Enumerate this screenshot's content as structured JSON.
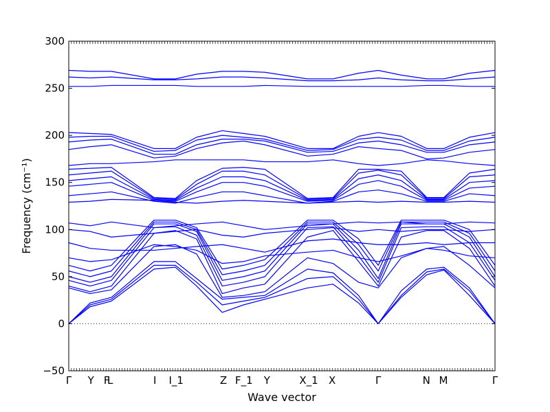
{
  "chart_data": {
    "type": "line",
    "title": "",
    "xlabel": "Wave vector",
    "ylabel": "Frequency (cm⁻¹)",
    "ylim": [
      -50,
      300
    ],
    "yticks": [
      -50,
      0,
      50,
      100,
      150,
      200,
      250,
      300
    ],
    "legend": "none",
    "grid": false,
    "line_color": "#0000ff",
    "zero_line_style": "dotted",
    "x_range": [
      0,
      1
    ],
    "kpoints": [
      {
        "label": "Γ",
        "x": 0.0
      },
      {
        "label": "Y",
        "x": 0.052
      },
      {
        "label": "F",
        "x": 0.089
      },
      {
        "label": "L",
        "x": 0.097
      },
      {
        "label": "I",
        "x": 0.202
      },
      {
        "label": "I_1",
        "x": 0.252
      },
      {
        "label": "Z",
        "x": 0.363
      },
      {
        "label": "F_1",
        "x": 0.411
      },
      {
        "label": "Y",
        "x": 0.465
      },
      {
        "label": "X_1",
        "x": 0.563
      },
      {
        "label": "X",
        "x": 0.618
      },
      {
        "label": "Γ",
        "x": 0.726
      },
      {
        "label": "N",
        "x": 0.839
      },
      {
        "label": "M",
        "x": 0.879
      },
      {
        "label": "Γ",
        "x": 1.0
      }
    ],
    "series": [
      {
        "x": [
          0,
          0.05,
          0.1,
          0.2,
          0.25,
          0.3,
          0.36,
          0.41,
          0.46,
          0.56,
          0.62,
          0.68,
          0.726,
          0.78,
          0.84,
          0.88,
          0.94,
          1.0
        ],
        "values": [
          0,
          18,
          24,
          58,
          60,
          40,
          12,
          20,
          26,
          38,
          42,
          22,
          0,
          28,
          52,
          57,
          30,
          0
        ]
      },
      {
        "x": [
          0,
          0.05,
          0.1,
          0.2,
          0.25,
          0.3,
          0.36,
          0.41,
          0.46,
          0.56,
          0.62,
          0.68,
          0.726,
          0.78,
          0.84,
          0.88,
          0.94,
          1.0
        ],
        "values": [
          0,
          20,
          26,
          62,
          62,
          44,
          20,
          24,
          28,
          48,
          50,
          26,
          0,
          30,
          55,
          58,
          35,
          0
        ]
      },
      {
        "x": [
          0,
          0.05,
          0.1,
          0.2,
          0.25,
          0.3,
          0.36,
          0.41,
          0.46,
          0.56,
          0.62,
          0.68,
          0.726,
          0.78,
          0.84,
          0.88,
          0.94,
          1.0
        ],
        "values": [
          0,
          22,
          28,
          66,
          66,
          48,
          26,
          28,
          30,
          58,
          54,
          30,
          0,
          35,
          58,
          60,
          38,
          0
        ]
      },
      {
        "x": [
          0,
          0.05,
          0.1,
          0.2,
          0.25,
          0.3,
          0.36,
          0.41,
          0.46,
          0.56,
          0.62,
          0.68,
          0.726,
          0.78,
          0.84,
          0.88,
          0.94,
          1.0
        ],
        "values": [
          38,
          32,
          36,
          82,
          84,
          74,
          28,
          30,
          34,
          70,
          64,
          44,
          38,
          70,
          80,
          82,
          62,
          38
        ]
      },
      {
        "x": [
          0,
          0.05,
          0.1,
          0.2,
          0.25,
          0.3,
          0.36,
          0.41,
          0.46,
          0.56,
          0.62,
          0.68,
          0.726,
          0.78,
          0.84,
          0.88,
          0.94,
          1.0
        ],
        "values": [
          40,
          34,
          40,
          96,
          99,
          90,
          32,
          38,
          42,
          92,
          99,
          66,
          40,
          92,
          99,
          99,
          80,
          40
        ]
      },
      {
        "x": [
          0,
          0.05,
          0.1,
          0.2,
          0.25,
          0.3,
          0.36,
          0.41,
          0.46,
          0.56,
          0.62,
          0.68,
          0.726,
          0.78,
          0.84,
          0.88,
          0.94,
          1.0
        ],
        "values": [
          46,
          40,
          46,
          102,
          103,
          94,
          40,
          44,
          50,
          102,
          103,
          72,
          44,
          102,
          103,
          103,
          86,
          46
        ]
      },
      {
        "x": [
          0,
          0.05,
          0.1,
          0.2,
          0.25,
          0.3,
          0.36,
          0.41,
          0.46,
          0.56,
          0.62,
          0.68,
          0.726,
          0.78,
          0.84,
          0.88,
          0.94,
          1.0
        ],
        "values": [
          50,
          44,
          50,
          106,
          106,
          98,
          46,
          50,
          56,
          106,
          106,
          78,
          48,
          106,
          106,
          106,
          92,
          50
        ]
      },
      {
        "x": [
          0,
          0.05,
          0.1,
          0.2,
          0.25,
          0.3,
          0.36,
          0.41,
          0.46,
          0.56,
          0.62,
          0.68,
          0.726,
          0.78,
          0.84,
          0.88,
          0.94,
          1.0
        ],
        "values": [
          56,
          50,
          56,
          108,
          108,
          100,
          52,
          56,
          62,
          108,
          108,
          84,
          56,
          108,
          108,
          108,
          96,
          56
        ]
      },
      {
        "x": [
          0,
          0.05,
          0.1,
          0.2,
          0.25,
          0.3,
          0.36,
          0.41,
          0.46,
          0.56,
          0.62,
          0.68,
          0.726,
          0.78,
          0.84,
          0.88,
          0.94,
          1.0
        ],
        "values": [
          62,
          56,
          62,
          110,
          110,
          102,
          58,
          62,
          68,
          110,
          110,
          90,
          62,
          110,
          110,
          110,
          100,
          62
        ]
      },
      {
        "x": [
          0,
          0.05,
          0.1,
          0.2,
          0.25,
          0.3,
          0.36,
          0.41,
          0.46,
          0.56,
          0.62,
          0.68,
          0.726,
          0.78,
          0.84,
          0.88,
          0.94,
          1.0
        ],
        "values": [
          70,
          66,
          68,
          84,
          82,
          78,
          64,
          66,
          72,
          76,
          78,
          70,
          66,
          72,
          80,
          78,
          72,
          70
        ]
      },
      {
        "x": [
          0,
          0.05,
          0.1,
          0.2,
          0.25,
          0.3,
          0.36,
          0.41,
          0.46,
          0.56,
          0.62,
          0.68,
          0.726,
          0.78,
          0.84,
          0.88,
          0.94,
          1.0
        ],
        "values": [
          86,
          80,
          78,
          78,
          80,
          82,
          84,
          80,
          76,
          88,
          90,
          86,
          84,
          84,
          86,
          84,
          86,
          86
        ]
      },
      {
        "x": [
          0,
          0.05,
          0.1,
          0.2,
          0.25,
          0.3,
          0.36,
          0.41,
          0.46,
          0.56,
          0.62,
          0.68,
          0.726,
          0.78,
          0.84,
          0.88,
          0.94,
          1.0
        ],
        "values": [
          100,
          98,
          92,
          96,
          98,
          100,
          94,
          92,
          96,
          100,
          102,
          98,
          100,
          98,
          100,
          100,
          98,
          100
        ]
      },
      {
        "x": [
          0,
          0.05,
          0.1,
          0.2,
          0.25,
          0.3,
          0.36,
          0.41,
          0.46,
          0.56,
          0.62,
          0.68,
          0.726,
          0.78,
          0.84,
          0.88,
          0.94,
          1.0
        ],
        "values": [
          107,
          104,
          108,
          102,
          104,
          106,
          108,
          104,
          100,
          104,
          106,
          108,
          107,
          108,
          106,
          106,
          108,
          107
        ]
      },
      {
        "x": [
          0,
          0.05,
          0.1,
          0.2,
          0.25,
          0.3,
          0.36,
          0.41,
          0.46,
          0.56,
          0.62,
          0.68,
          0.726,
          0.78,
          0.84,
          0.88,
          0.94,
          1.0
        ],
        "values": [
          129,
          130,
          132,
          131,
          129,
          128,
          130,
          131,
          130,
          128,
          129,
          130,
          129,
          130,
          129,
          129,
          130,
          129
        ]
      },
      {
        "x": [
          0,
          0.05,
          0.1,
          0.2,
          0.25,
          0.3,
          0.36,
          0.41,
          0.46,
          0.56,
          0.62,
          0.68,
          0.726,
          0.78,
          0.84,
          0.88,
          0.94,
          1.0
        ],
        "values": [
          136,
          138,
          140,
          130,
          128,
          134,
          140,
          140,
          136,
          128,
          130,
          140,
          142,
          138,
          130,
          130,
          138,
          136
        ]
      },
      {
        "x": [
          0,
          0.05,
          0.1,
          0.2,
          0.25,
          0.3,
          0.36,
          0.41,
          0.46,
          0.56,
          0.62,
          0.68,
          0.726,
          0.78,
          0.84,
          0.88,
          0.94,
          1.0
        ],
        "values": [
          146,
          148,
          150,
          131,
          130,
          140,
          150,
          150,
          146,
          130,
          131,
          148,
          152,
          146,
          131,
          131,
          144,
          146
        ]
      },
      {
        "x": [
          0,
          0.05,
          0.1,
          0.2,
          0.25,
          0.3,
          0.36,
          0.41,
          0.46,
          0.56,
          0.62,
          0.68,
          0.726,
          0.78,
          0.84,
          0.88,
          0.94,
          1.0
        ],
        "values": [
          152,
          154,
          156,
          132,
          131,
          144,
          156,
          156,
          152,
          131,
          132,
          154,
          158,
          152,
          132,
          132,
          150,
          152
        ]
      },
      {
        "x": [
          0,
          0.05,
          0.1,
          0.2,
          0.25,
          0.3,
          0.36,
          0.41,
          0.46,
          0.56,
          0.62,
          0.68,
          0.726,
          0.78,
          0.84,
          0.88,
          0.94,
          1.0
        ],
        "values": [
          158,
          160,
          162,
          133,
          132,
          148,
          162,
          162,
          158,
          132,
          133,
          160,
          163,
          158,
          133,
          133,
          156,
          158
        ]
      },
      {
        "x": [
          0,
          0.05,
          0.1,
          0.2,
          0.25,
          0.3,
          0.36,
          0.41,
          0.46,
          0.56,
          0.62,
          0.68,
          0.726,
          0.78,
          0.84,
          0.88,
          0.94,
          1.0
        ],
        "values": [
          164,
          165,
          166,
          134,
          133,
          152,
          165,
          166,
          164,
          133,
          134,
          164,
          164,
          162,
          134,
          134,
          160,
          164
        ]
      },
      {
        "x": [
          0,
          0.05,
          0.1,
          0.2,
          0.25,
          0.3,
          0.36,
          0.41,
          0.46,
          0.56,
          0.62,
          0.68,
          0.726,
          0.78,
          0.84,
          0.88,
          0.94,
          1.0
        ],
        "values": [
          168,
          170,
          170,
          172,
          174,
          174,
          174,
          174,
          172,
          172,
          174,
          170,
          168,
          170,
          174,
          173,
          170,
          168
        ]
      },
      {
        "x": [
          0,
          0.05,
          0.1,
          0.2,
          0.25,
          0.3,
          0.36,
          0.41,
          0.46,
          0.56,
          0.62,
          0.68,
          0.726,
          0.78,
          0.84,
          0.88,
          0.94,
          1.0
        ],
        "values": [
          185,
          188,
          190,
          176,
          178,
          186,
          192,
          194,
          190,
          178,
          180,
          188,
          186,
          184,
          175,
          176,
          182,
          185
        ]
      },
      {
        "x": [
          0,
          0.05,
          0.1,
          0.2,
          0.25,
          0.3,
          0.36,
          0.41,
          0.46,
          0.56,
          0.62,
          0.68,
          0.726,
          0.78,
          0.84,
          0.88,
          0.94,
          1.0
        ],
        "values": [
          193,
          195,
          196,
          180,
          180,
          190,
          196,
          196,
          194,
          182,
          183,
          192,
          194,
          190,
          182,
          182,
          190,
          193
        ]
      },
      {
        "x": [
          0,
          0.05,
          0.1,
          0.2,
          0.25,
          0.3,
          0.36,
          0.41,
          0.46,
          0.56,
          0.62,
          0.68,
          0.726,
          0.78,
          0.84,
          0.88,
          0.94,
          1.0
        ],
        "values": [
          198,
          199,
          199,
          183,
          184,
          195,
          200,
          198,
          196,
          184,
          185,
          196,
          198,
          195,
          184,
          184,
          194,
          198
        ]
      },
      {
        "x": [
          0,
          0.05,
          0.1,
          0.2,
          0.25,
          0.3,
          0.36,
          0.41,
          0.46,
          0.56,
          0.62,
          0.68,
          0.726,
          0.78,
          0.84,
          0.88,
          0.94,
          1.0
        ],
        "values": [
          203,
          202,
          201,
          186,
          186,
          198,
          205,
          202,
          199,
          186,
          186,
          199,
          203,
          199,
          186,
          186,
          198,
          203
        ]
      },
      {
        "x": [
          0,
          0.05,
          0.1,
          0.2,
          0.25,
          0.3,
          0.36,
          0.41,
          0.46,
          0.56,
          0.62,
          0.68,
          0.726,
          0.78,
          0.84,
          0.88,
          0.94,
          1.0
        ],
        "values": [
          252,
          252,
          253,
          253,
          253,
          252,
          252,
          252,
          253,
          252,
          252,
          252,
          252,
          252,
          253,
          253,
          252,
          252
        ]
      },
      {
        "x": [
          0,
          0.05,
          0.1,
          0.2,
          0.25,
          0.3,
          0.36,
          0.41,
          0.46,
          0.56,
          0.62,
          0.68,
          0.726,
          0.78,
          0.84,
          0.88,
          0.94,
          1.0
        ],
        "values": [
          262,
          261,
          262,
          259,
          259,
          260,
          262,
          262,
          261,
          258,
          258,
          259,
          261,
          259,
          258,
          258,
          260,
          262
        ]
      },
      {
        "x": [
          0,
          0.05,
          0.1,
          0.2,
          0.25,
          0.3,
          0.36,
          0.41,
          0.46,
          0.56,
          0.62,
          0.68,
          0.726,
          0.78,
          0.84,
          0.88,
          0.94,
          1.0
        ],
        "values": [
          269,
          268,
          268,
          260,
          260,
          265,
          268,
          268,
          267,
          260,
          260,
          266,
          269,
          264,
          260,
          260,
          266,
          269
        ]
      }
    ]
  }
}
